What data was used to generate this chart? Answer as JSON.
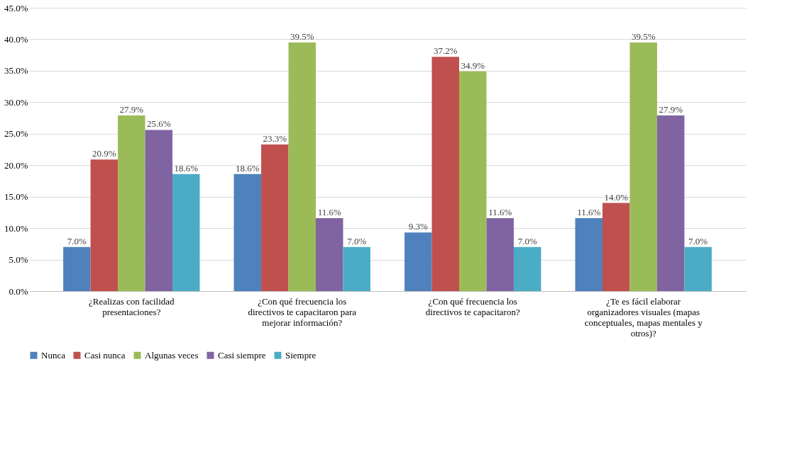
{
  "chart_data": {
    "type": "bar",
    "categories": [
      "¿Realizas con facilidad presentaciones?",
      "¿Con qué frecuencia los directivos te capacitaron para mejorar información?",
      "¿Con qué frecuencia los directivos te capacitaron?",
      "¿Te es fácil elaborar organizadores visuales (mapas conceptuales, mapas mentales y otros)?"
    ],
    "series": [
      {
        "name": "Nunca",
        "color": "#4f81bd",
        "values": [
          7.0,
          18.6,
          9.3,
          11.6
        ],
        "value_labels": [
          "7.0%",
          "18.6%",
          "9.3%",
          "11.6%"
        ]
      },
      {
        "name": "Casi nunca",
        "color": "#c0504d",
        "values": [
          20.9,
          23.3,
          37.2,
          14.0
        ],
        "value_labels": [
          "20.9%",
          "23.3%",
          "37.2%",
          "14.0%"
        ]
      },
      {
        "name": "Algunas veces",
        "color": "#9bbb59",
        "values": [
          27.9,
          39.5,
          34.9,
          39.5
        ],
        "value_labels": [
          "27.9%",
          "39.5%",
          "34.9%",
          "39.5%"
        ]
      },
      {
        "name": "Casi siempre",
        "color": "#8064a2",
        "values": [
          25.6,
          11.6,
          11.6,
          27.9
        ],
        "value_labels": [
          "25.6%",
          "11.6%",
          "11.6%",
          "27.9%"
        ]
      },
      {
        "name": "Siempre",
        "color": "#4bacc6",
        "values": [
          18.6,
          7.0,
          7.0,
          7.0
        ],
        "value_labels": [
          "18.6%",
          "7.0%",
          "7.0%",
          "7.0%"
        ]
      }
    ],
    "ylim": [
      0,
      45
    ],
    "yticks": [
      {
        "value": 0,
        "label": "0.0%"
      },
      {
        "value": 5,
        "label": "5.0%"
      },
      {
        "value": 10,
        "label": "10.0%"
      },
      {
        "value": 15,
        "label": "15.0%"
      },
      {
        "value": 20,
        "label": "20.0%"
      },
      {
        "value": 25,
        "label": "25.0%"
      },
      {
        "value": 30,
        "label": "30.0%"
      },
      {
        "value": 35,
        "label": "35.0%"
      },
      {
        "value": 40,
        "label": "40.0%"
      },
      {
        "value": 45,
        "label": "45.0%"
      }
    ],
    "grid": "y",
    "legend": "bottom"
  }
}
